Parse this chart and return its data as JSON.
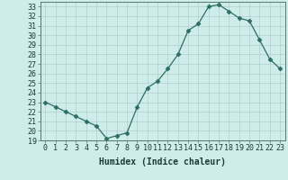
{
  "x": [
    0,
    1,
    2,
    3,
    4,
    5,
    6,
    7,
    8,
    9,
    10,
    11,
    12,
    13,
    14,
    15,
    16,
    17,
    18,
    19,
    20,
    21,
    22,
    23
  ],
  "y": [
    23.0,
    22.5,
    22.0,
    21.5,
    21.0,
    20.5,
    19.2,
    19.5,
    19.8,
    22.5,
    24.5,
    25.2,
    26.5,
    28.0,
    30.5,
    31.2,
    33.0,
    33.2,
    32.5,
    31.8,
    31.5,
    29.5,
    27.5,
    26.5
  ],
  "line_color": "#2e6e62",
  "marker": "D",
  "marker_size": 2.5,
  "bg_color": "#ceecea",
  "grid_color": "#b0cecc",
  "xlabel": "Humidex (Indice chaleur)",
  "ylim": [
    19,
    33.5
  ],
  "xlim": [
    -0.5,
    23.5
  ],
  "yticks": [
    19,
    20,
    21,
    22,
    23,
    24,
    25,
    26,
    27,
    28,
    29,
    30,
    31,
    32,
    33
  ],
  "xticks": [
    0,
    1,
    2,
    3,
    4,
    5,
    6,
    7,
    8,
    9,
    10,
    11,
    12,
    13,
    14,
    15,
    16,
    17,
    18,
    19,
    20,
    21,
    22,
    23
  ],
  "tick_fontsize": 6,
  "xlabel_fontsize": 7
}
